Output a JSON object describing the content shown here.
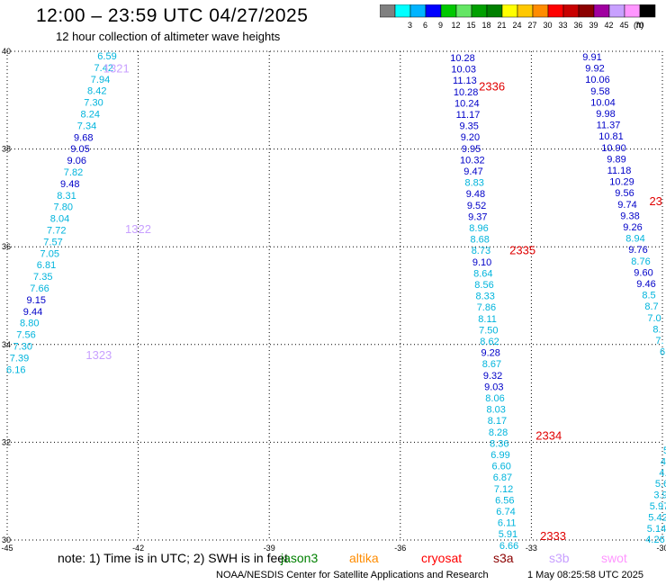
{
  "header": {
    "title": "12:00 – 23:59 UTC 04/27/2025",
    "subtitle": "12 hour collection of altimeter wave heights"
  },
  "color_scale": {
    "unit": "(ft)",
    "bins": [
      {
        "label": "",
        "color": "#808080"
      },
      {
        "label": "3",
        "color": "#00ffff"
      },
      {
        "label": "6",
        "color": "#00b4ff"
      },
      {
        "label": "9",
        "color": "#0000ff"
      },
      {
        "label": "12",
        "color": "#00c800"
      },
      {
        "label": "15",
        "color": "#64e664"
      },
      {
        "label": "18",
        "color": "#00a000"
      },
      {
        "label": "21",
        "color": "#008000"
      },
      {
        "label": "24",
        "color": "#ffff00"
      },
      {
        "label": "27",
        "color": "#ffc800"
      },
      {
        "label": "30",
        "color": "#ff8c00"
      },
      {
        "label": "33",
        "color": "#ff0000"
      },
      {
        "label": "36",
        "color": "#c80000"
      },
      {
        "label": "39",
        "color": "#8b0000"
      },
      {
        "label": "42",
        "color": "#a000a0"
      },
      {
        "label": "45",
        "color": "#c8a0ff"
      },
      {
        "label": "70",
        "color": "#ff96ff"
      },
      {
        "label": "",
        "color": "#000000"
      }
    ]
  },
  "axes": {
    "lon_ticks": [
      "-45",
      "-42",
      "-39",
      "-36",
      "-33",
      "-30"
    ],
    "lat_ticks": [
      "40",
      "38",
      "36",
      "34",
      "32",
      "30"
    ],
    "lon_range": [
      -45,
      -30
    ],
    "lat_range": [
      30,
      40
    ]
  },
  "colors": {
    "cyan_class": "#00b4dc",
    "blue_class": "#0000c8",
    "time_old": "#c8a0ff",
    "time_new": "#e00000"
  },
  "tracks": [
    {
      "lon": -43.8,
      "lat_top": 39.83,
      "lat_step": -0.229,
      "time_label": "",
      "values": [
        {
          "v": "6.59",
          "c": "c"
        },
        {
          "v": "7.42",
          "c": "c"
        },
        {
          "v": "7.94",
          "c": "c"
        },
        {
          "v": "8.42",
          "c": "c"
        },
        {
          "v": "7.30",
          "c": "c"
        },
        {
          "v": "8.24",
          "c": "c"
        },
        {
          "v": "7.34",
          "c": "c"
        },
        {
          "v": "9.68",
          "c": "b"
        },
        {
          "v": "9.05",
          "c": "b"
        },
        {
          "v": "9.06",
          "c": "b"
        },
        {
          "v": "7.82",
          "c": "c"
        },
        {
          "v": "9.48",
          "c": "b"
        },
        {
          "v": "8.31",
          "c": "c"
        },
        {
          "v": "7.80",
          "c": "c"
        },
        {
          "v": "8.04",
          "c": "c"
        },
        {
          "v": "7.72",
          "c": "c"
        },
        {
          "v": "7.57",
          "c": "c"
        },
        {
          "v": "7.05",
          "c": "c"
        },
        {
          "v": "6.81",
          "c": "c"
        },
        {
          "v": "7.35",
          "c": "c"
        },
        {
          "v": "7.66",
          "c": "c"
        },
        {
          "v": "9.15",
          "c": "b"
        },
        {
          "v": "9.44",
          "c": "b"
        },
        {
          "v": "8.80",
          "c": "c"
        },
        {
          "v": "7.56",
          "c": "c"
        },
        {
          "v": "7.30",
          "c": "c"
        },
        {
          "v": "7.39",
          "c": "c"
        },
        {
          "v": "6.16",
          "c": "c"
        }
      ]
    }
  ],
  "time_labels": [
    {
      "text": "1321",
      "lon": -42.8,
      "lat": 39.57,
      "kind": "old"
    },
    {
      "text": "1322",
      "lon": -42.3,
      "lat": 36.28,
      "kind": "old"
    },
    {
      "text": "1323",
      "lon": -43.2,
      "lat": 33.7,
      "kind": "old"
    },
    {
      "text": "2336",
      "lon": -34.2,
      "lat": 39.2,
      "kind": "new"
    },
    {
      "text": "2335",
      "lon": -33.5,
      "lat": 35.85,
      "kind": "new"
    },
    {
      "text": "2334",
      "lon": -32.9,
      "lat": 32.05,
      "kind": "new"
    },
    {
      "text": "2333",
      "lon": -32.8,
      "lat": 30.0,
      "kind": "new"
    },
    {
      "text": "23",
      "lon": -30.3,
      "lat": 36.85,
      "kind": "new"
    }
  ],
  "track_mid": [
    {
      "v": "10.28",
      "c": "b"
    },
    {
      "v": "10.03",
      "c": "b"
    },
    {
      "v": "11.13",
      "c": "b"
    },
    {
      "v": "10.28",
      "c": "b"
    },
    {
      "v": "10.24",
      "c": "b"
    },
    {
      "v": "11.17",
      "c": "b"
    },
    {
      "v": "9.35",
      "c": "b"
    },
    {
      "v": "9.20",
      "c": "b"
    },
    {
      "v": "9.95",
      "c": "b"
    },
    {
      "v": "10.32",
      "c": "b"
    },
    {
      "v": "9.47",
      "c": "b"
    },
    {
      "v": "8.83",
      "c": "c"
    },
    {
      "v": "9.48",
      "c": "b"
    },
    {
      "v": "9.52",
      "c": "b"
    },
    {
      "v": "9.37",
      "c": "b"
    },
    {
      "v": "8.96",
      "c": "c"
    },
    {
      "v": "8.68",
      "c": "c"
    },
    {
      "v": "8.73",
      "c": "c"
    },
    {
      "v": "9.10",
      "c": "b"
    },
    {
      "v": "8.64",
      "c": "c"
    },
    {
      "v": "8.56",
      "c": "c"
    },
    {
      "v": "8.33",
      "c": "c"
    },
    {
      "v": "7.86",
      "c": "c"
    },
    {
      "v": "8.11",
      "c": "c"
    },
    {
      "v": "7.50",
      "c": "c"
    },
    {
      "v": "8.62",
      "c": "c"
    },
    {
      "v": "9.28",
      "c": "b"
    },
    {
      "v": "8.67",
      "c": "c"
    },
    {
      "v": "9.32",
      "c": "b"
    },
    {
      "v": "9.03",
      "c": "b"
    },
    {
      "v": "8.06",
      "c": "c"
    },
    {
      "v": "8.03",
      "c": "c"
    },
    {
      "v": "8.17",
      "c": "c"
    },
    {
      "v": "8.28",
      "c": "c"
    },
    {
      "v": "8.36",
      "c": "c"
    },
    {
      "v": "6.99",
      "c": "c"
    },
    {
      "v": "6.60",
      "c": "c"
    },
    {
      "v": "6.87",
      "c": "c"
    },
    {
      "v": "7.12",
      "c": "c"
    },
    {
      "v": "6.56",
      "c": "c"
    },
    {
      "v": "6.74",
      "c": "c"
    },
    {
      "v": "6.11",
      "c": "c"
    },
    {
      "v": "5.91",
      "c": "c"
    },
    {
      "v": "6.66",
      "c": "c"
    }
  ],
  "track_right": [
    {
      "v": "9.91",
      "c": "b"
    },
    {
      "v": "9.92",
      "c": "b"
    },
    {
      "v": "10.06",
      "c": "b"
    },
    {
      "v": "9.58",
      "c": "b"
    },
    {
      "v": "10.04",
      "c": "b"
    },
    {
      "v": "9.98",
      "c": "b"
    },
    {
      "v": "11.37",
      "c": "b"
    },
    {
      "v": "10.81",
      "c": "b"
    },
    {
      "v": "10.90",
      "c": "b"
    },
    {
      "v": "9.89",
      "c": "b"
    },
    {
      "v": "11.18",
      "c": "b"
    },
    {
      "v": "10.29",
      "c": "b"
    },
    {
      "v": "9.56",
      "c": "b"
    },
    {
      "v": "9.74",
      "c": "b"
    },
    {
      "v": "9.38",
      "c": "b"
    },
    {
      "v": "9.26",
      "c": "b"
    },
    {
      "v": "8.94",
      "c": "c"
    },
    {
      "v": "9.76",
      "c": "b"
    },
    {
      "v": "8.76",
      "c": "c"
    },
    {
      "v": "9.60",
      "c": "b"
    },
    {
      "v": "9.46",
      "c": "b"
    },
    {
      "v": "8.5",
      "c": "c"
    },
    {
      "v": "8.7",
      "c": "c"
    },
    {
      "v": "7.0",
      "c": "c"
    },
    {
      "v": "8.",
      "c": "c"
    },
    {
      "v": "7.",
      "c": "c"
    },
    {
      "v": "6",
      "c": "c"
    }
  ],
  "track_right_low": [
    {
      "v": "5",
      "c": "c"
    },
    {
      "v": "4.",
      "c": "c"
    },
    {
      "v": "4.",
      "c": "c"
    },
    {
      "v": "5.6",
      "c": "c"
    },
    {
      "v": "3.9",
      "c": "c"
    },
    {
      "v": "5.97",
      "c": "c"
    },
    {
      "v": "5.42",
      "c": "c"
    },
    {
      "v": "5.14",
      "c": "c"
    },
    {
      "v": "4.26",
      "c": "c"
    }
  ],
  "note": "note: 1) Time is in UTC; 2) SWH is in feet",
  "legend": [
    {
      "name": "jason3",
      "color": "#008000"
    },
    {
      "name": "altika",
      "color": "#ff8c00"
    },
    {
      "name": "cryosat",
      "color": "#ff0000"
    },
    {
      "name": "s3a",
      "color": "#8b0000"
    },
    {
      "name": "s3b",
      "color": "#c8a0ff"
    },
    {
      "name": "swot",
      "color": "#ff96ff"
    }
  ],
  "footer": {
    "credit": "NOAA/NESDIS Center for Satellite Applications and Research",
    "stamp": "1 May 08:25:58 UTC 2025"
  }
}
